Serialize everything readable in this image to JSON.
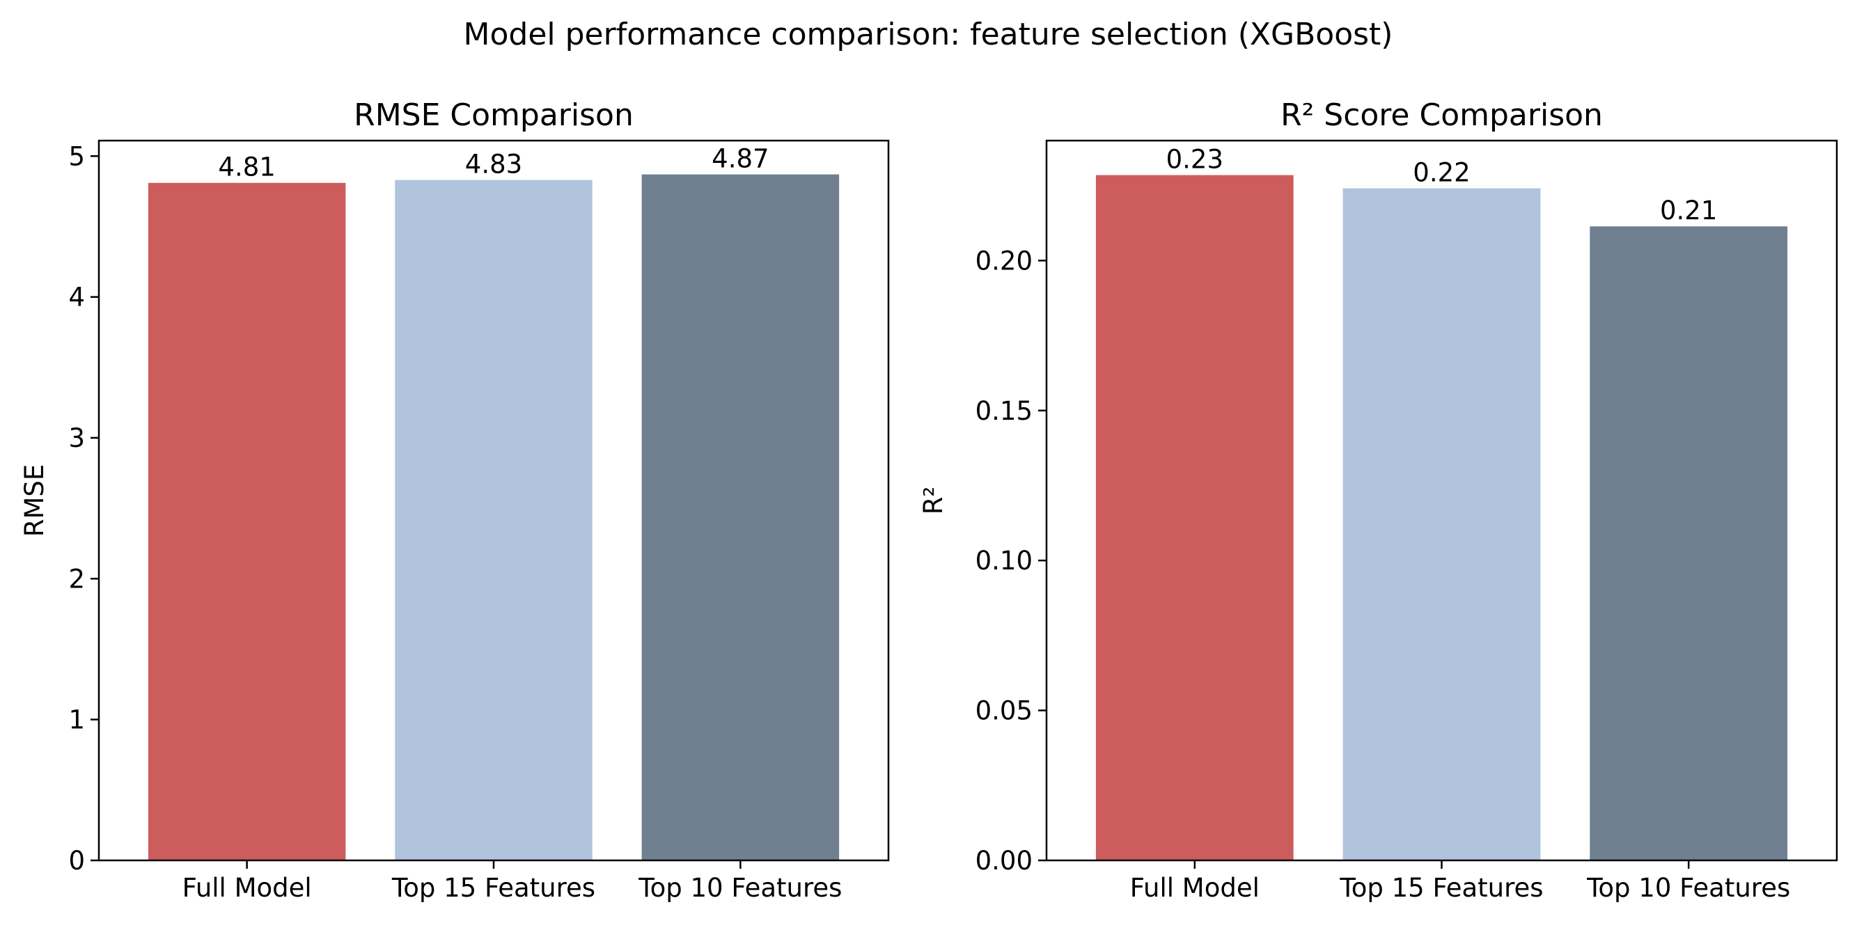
{
  "figure": {
    "suptitle": "Model performance comparison: feature selection (XGBoost)"
  },
  "chart_data": [
    {
      "type": "bar",
      "title": "RMSE Comparison",
      "xlabel": "",
      "ylabel": "RMSE",
      "categories": [
        "Full Model",
        "Top 15 Features",
        "Top 10 Features"
      ],
      "values": [
        4.81,
        4.83,
        4.87
      ],
      "value_labels": [
        "4.81",
        "4.83",
        "4.87"
      ],
      "colors": [
        "#cd5c5c",
        "#b0c4de",
        "#708090"
      ],
      "ylim": [
        0,
        5.11
      ],
      "yticks": [
        0,
        1,
        2,
        3,
        4,
        5
      ],
      "ytick_labels": [
        "0",
        "1",
        "2",
        "3",
        "4",
        "5"
      ],
      "grid": false,
      "legend": "none"
    },
    {
      "type": "bar",
      "title": "R² Score Comparison",
      "xlabel": "",
      "ylabel": "R²",
      "categories": [
        "Full Model",
        "Top 15 Features",
        "Top 10 Features"
      ],
      "values": [
        0.2285,
        0.2241,
        0.2114
      ],
      "value_labels": [
        "0.23",
        "0.22",
        "0.21"
      ],
      "colors": [
        "#cd5c5c",
        "#b0c4de",
        "#708090"
      ],
      "ylim": [
        0,
        0.24
      ],
      "yticks": [
        0,
        0.05,
        0.1,
        0.15,
        0.2
      ],
      "ytick_labels": [
        "0.00",
        "0.05",
        "0.10",
        "0.15",
        "0.20"
      ],
      "grid": false,
      "legend": "none"
    }
  ]
}
